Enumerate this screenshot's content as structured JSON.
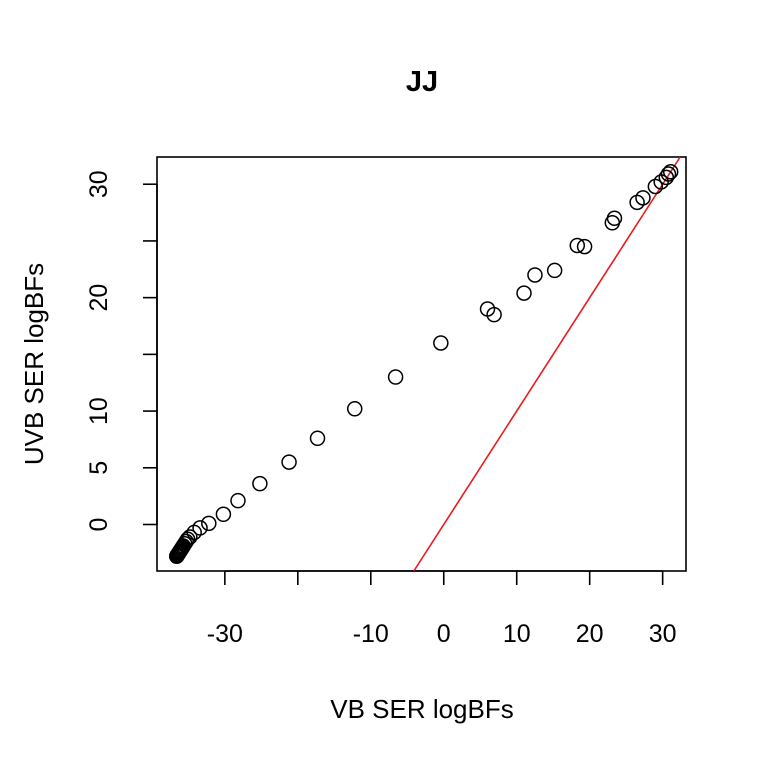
{
  "chart_data": {
    "type": "scatter",
    "title": "JJ",
    "xlabel": "VB SER logBFs",
    "ylabel": "UVB SER logBFs",
    "xlim": [
      -39.3,
      33.2
    ],
    "ylim": [
      -4.1,
      32.4
    ],
    "x_ticks": [
      -30,
      -20,
      -10,
      0,
      10,
      20,
      30
    ],
    "x_tick_labels": [
      "-30",
      "",
      "-10",
      "0",
      "10",
      "20",
      "30"
    ],
    "y_ticks": [
      0,
      5,
      10,
      15,
      20,
      25,
      30
    ],
    "y_tick_labels": [
      "0",
      "5",
      "10",
      "",
      "20",
      "",
      "30"
    ],
    "grid": false,
    "legend": "none",
    "series": [
      {
        "name": "logBFs",
        "marker": "open-circle",
        "points": [
          {
            "x": -36.6,
            "y": -2.8
          },
          {
            "x": -36.5,
            "y": -2.7
          },
          {
            "x": -36.4,
            "y": -2.6
          },
          {
            "x": -36.3,
            "y": -2.5
          },
          {
            "x": -36.2,
            "y": -2.4
          },
          {
            "x": -36.1,
            "y": -2.3
          },
          {
            "x": -36.0,
            "y": -2.2
          },
          {
            "x": -35.9,
            "y": -2.1
          },
          {
            "x": -35.8,
            "y": -2.0
          },
          {
            "x": -35.7,
            "y": -1.9
          },
          {
            "x": -35.5,
            "y": -1.7
          },
          {
            "x": -35.3,
            "y": -1.5
          },
          {
            "x": -35.1,
            "y": -1.3
          },
          {
            "x": -34.8,
            "y": -1.1
          },
          {
            "x": -34.2,
            "y": -0.7
          },
          {
            "x": -33.4,
            "y": -0.3
          },
          {
            "x": -32.2,
            "y": 0.1
          },
          {
            "x": -30.2,
            "y": 0.9
          },
          {
            "x": -28.2,
            "y": 2.1
          },
          {
            "x": -25.2,
            "y": 3.6
          },
          {
            "x": -21.2,
            "y": 5.5
          },
          {
            "x": -17.3,
            "y": 7.6
          },
          {
            "x": -12.2,
            "y": 10.2
          },
          {
            "x": -6.6,
            "y": 13.0
          },
          {
            "x": -0.4,
            "y": 16.0
          },
          {
            "x": 6.0,
            "y": 19.0
          },
          {
            "x": 6.9,
            "y": 18.5
          },
          {
            "x": 11.0,
            "y": 20.4
          },
          {
            "x": 12.5,
            "y": 22.0
          },
          {
            "x": 15.2,
            "y": 22.4
          },
          {
            "x": 18.3,
            "y": 24.6
          },
          {
            "x": 19.3,
            "y": 24.5
          },
          {
            "x": 23.1,
            "y": 26.6
          },
          {
            "x": 23.4,
            "y": 27.0
          },
          {
            "x": 26.5,
            "y": 28.4
          },
          {
            "x": 27.3,
            "y": 28.8
          },
          {
            "x": 29.0,
            "y": 29.8
          },
          {
            "x": 29.8,
            "y": 30.2
          },
          {
            "x": 30.5,
            "y": 30.6
          },
          {
            "x": 30.8,
            "y": 30.9
          },
          {
            "x": 31.1,
            "y": 31.1
          }
        ]
      }
    ],
    "reference_line": {
      "type": "identity",
      "label": "y = x",
      "color": "#e8191f"
    }
  }
}
